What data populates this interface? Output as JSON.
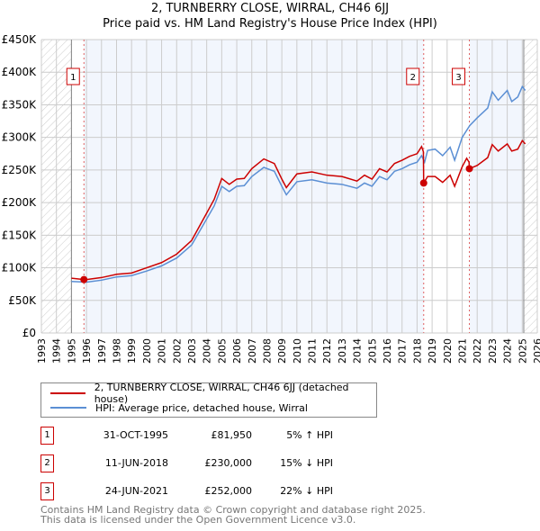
{
  "title": "2, TURNBERRY CLOSE, WIRRAL, CH46 6JJ",
  "subtitle": "Price paid vs. HM Land Registry's House Price Index (HPI)",
  "chart_data": {
    "type": "line",
    "title": "2, TURNBERRY CLOSE, WIRRAL, CH46 6JJ",
    "subtitle": "Price paid vs. HM Land Registry's House Price Index (HPI)",
    "xlim": [
      1993,
      2026
    ],
    "ylim": [
      0,
      450000
    ],
    "x_ticks": [
      "1993",
      "1994",
      "1995",
      "1996",
      "1997",
      "1998",
      "1999",
      "2000",
      "2001",
      "2002",
      "2003",
      "2004",
      "2005",
      "2006",
      "2007",
      "2008",
      "2009",
      "2010",
      "2011",
      "2012",
      "2013",
      "2014",
      "2015",
      "2016",
      "2017",
      "2018",
      "2019",
      "2020",
      "2021",
      "2022",
      "2023",
      "2024",
      "2025",
      "2026"
    ],
    "y_ticks": [
      {
        "v": 0,
        "l": "£0"
      },
      {
        "v": 50000,
        "l": "£50K"
      },
      {
        "v": 100000,
        "l": "£100K"
      },
      {
        "v": 150000,
        "l": "£150K"
      },
      {
        "v": 200000,
        "l": "£200K"
      },
      {
        "v": 250000,
        "l": "£250K"
      },
      {
        "v": 300000,
        "l": "£300K"
      },
      {
        "v": 350000,
        "l": "£350K"
      },
      {
        "v": 400000,
        "l": "£400K"
      },
      {
        "v": 450000,
        "l": "£450K"
      }
    ],
    "grid": true,
    "data_range": [
      1995,
      2025.1
    ],
    "series": [
      {
        "name": "2, TURNBERRY CLOSE, WIRRAL, CH46 6JJ (detached house)",
        "color": "#cc0000",
        "points": [
          [
            1995,
            84
          ],
          [
            1995.83,
            81.95
          ],
          [
            1996,
            82
          ],
          [
            1997,
            85
          ],
          [
            1998,
            90
          ],
          [
            1999,
            92
          ],
          [
            2000,
            100
          ],
          [
            2001,
            108
          ],
          [
            2002,
            121
          ],
          [
            2003,
            142
          ],
          [
            2004,
            184
          ],
          [
            2004.5,
            205
          ],
          [
            2005,
            237
          ],
          [
            2005.5,
            228
          ],
          [
            2006,
            236
          ],
          [
            2006.5,
            237
          ],
          [
            2007,
            252
          ],
          [
            2007.8,
            267
          ],
          [
            2008.5,
            260
          ],
          [
            2009,
            236
          ],
          [
            2009.3,
            223
          ],
          [
            2010,
            244
          ],
          [
            2011,
            247
          ],
          [
            2012,
            242
          ],
          [
            2013,
            240
          ],
          [
            2014,
            233
          ],
          [
            2014.5,
            242
          ],
          [
            2015,
            236
          ],
          [
            2015.5,
            252
          ],
          [
            2016,
            247
          ],
          [
            2016.5,
            260
          ],
          [
            2017,
            265
          ],
          [
            2017.5,
            271
          ],
          [
            2018,
            275
          ],
          [
            2018.3,
            286
          ],
          [
            2018.42,
            278
          ],
          [
            2018.44,
            230
          ],
          [
            2018.7,
            240
          ],
          [
            2019.2,
            240
          ],
          [
            2019.7,
            231
          ],
          [
            2020.2,
            242
          ],
          [
            2020.5,
            225
          ],
          [
            2021,
            255
          ],
          [
            2021.3,
            268
          ],
          [
            2021.46,
            262
          ],
          [
            2021.48,
            252
          ],
          [
            2022,
            257
          ],
          [
            2022.7,
            269
          ],
          [
            2023,
            289
          ],
          [
            2023.4,
            279
          ],
          [
            2024,
            290
          ],
          [
            2024.3,
            279
          ],
          [
            2024.7,
            282
          ],
          [
            2025,
            295
          ],
          [
            2025.2,
            290
          ]
        ]
      },
      {
        "name": "HPI: Average price, detached house, Wirral",
        "color": "#5b8fd4",
        "points": [
          [
            1995,
            79
          ],
          [
            1996,
            78
          ],
          [
            1997,
            81
          ],
          [
            1998,
            86
          ],
          [
            1999,
            88
          ],
          [
            2000,
            95
          ],
          [
            2001,
            103
          ],
          [
            2002,
            115
          ],
          [
            2003,
            135
          ],
          [
            2004,
            175
          ],
          [
            2004.5,
            195
          ],
          [
            2005,
            225
          ],
          [
            2005.5,
            217
          ],
          [
            2006,
            225
          ],
          [
            2006.5,
            226
          ],
          [
            2007,
            240
          ],
          [
            2007.8,
            254
          ],
          [
            2008.5,
            248
          ],
          [
            2009,
            225
          ],
          [
            2009.3,
            212
          ],
          [
            2010,
            232
          ],
          [
            2011,
            235
          ],
          [
            2012,
            230
          ],
          [
            2013,
            228
          ],
          [
            2014,
            222
          ],
          [
            2014.5,
            230
          ],
          [
            2015,
            225
          ],
          [
            2015.5,
            240
          ],
          [
            2016,
            235
          ],
          [
            2016.5,
            248
          ],
          [
            2017,
            252
          ],
          [
            2017.5,
            258
          ],
          [
            2018,
            262
          ],
          [
            2018.3,
            272
          ],
          [
            2018.5,
            262
          ],
          [
            2018.7,
            280
          ],
          [
            2019.2,
            282
          ],
          [
            2019.7,
            272
          ],
          [
            2020.2,
            285
          ],
          [
            2020.5,
            265
          ],
          [
            2021,
            300
          ],
          [
            2021.5,
            318
          ],
          [
            2022,
            330
          ],
          [
            2022.7,
            345
          ],
          [
            2023,
            370
          ],
          [
            2023.4,
            357
          ],
          [
            2024,
            372
          ],
          [
            2024.3,
            355
          ],
          [
            2024.7,
            362
          ],
          [
            2025,
            378
          ],
          [
            2025.2,
            372
          ]
        ]
      }
    ],
    "sales": [
      {
        "id": "1",
        "x": 1995.83,
        "y": 81950,
        "date": "31-OCT-1995",
        "price": "£81,950",
        "hpi": "5% ↑ HPI"
      },
      {
        "id": "2",
        "x": 2018.44,
        "y": 230000,
        "date": "11-JUN-2018",
        "price": "£230,000",
        "hpi": "15% ↓ HPI"
      },
      {
        "id": "3",
        "x": 2021.48,
        "y": 252000,
        "date": "24-JUN-2021",
        "price": "£252,000",
        "hpi": "22% ↓ HPI"
      }
    ]
  },
  "legend": [
    "2, TURNBERRY CLOSE, WIRRAL, CH46 6JJ (detached house)",
    "HPI: Average price, detached house, Wirral"
  ],
  "footer": [
    "Contains HM Land Registry data © Crown copyright and database right 2025.",
    "This data is licensed under the Open Government Licence v3.0."
  ]
}
